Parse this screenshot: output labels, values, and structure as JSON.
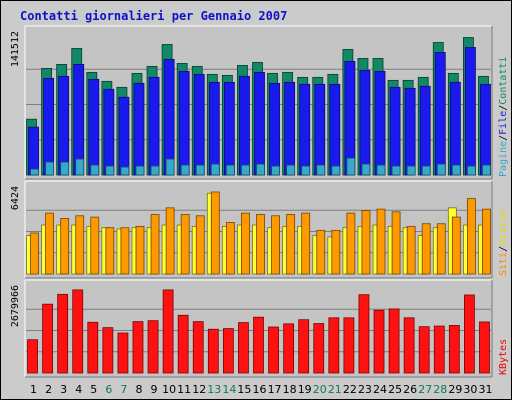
{
  "title": "Contatti giornalieri per Gennaio 2007",
  "chart_data": [
    {
      "type": "bar",
      "panel": "top",
      "categories": [
        "1",
        "2",
        "3",
        "4",
        "5",
        "6",
        "7",
        "8",
        "9",
        "10",
        "11",
        "12",
        "13",
        "14",
        "15",
        "16",
        "17",
        "18",
        "19",
        "20",
        "21",
        "22",
        "23",
        "24",
        "25",
        "26",
        "27",
        "28",
        "29",
        "30",
        "31"
      ],
      "weekend_days": [
        "6",
        "7",
        "13",
        "14",
        "20",
        "21",
        "27",
        "28"
      ],
      "ymax_label": "141512",
      "ylim": [
        0,
        141512
      ],
      "legend": [
        {
          "text": "Pagine",
          "color": "#33aacc"
        },
        {
          "text": "/",
          "color": "#000000"
        },
        {
          "text": "File",
          "color": "#2222dd"
        },
        {
          "text": "/",
          "color": "#000000"
        },
        {
          "text": "Contatti",
          "color": "#118866"
        }
      ],
      "series": [
        {
          "name": "Contatti",
          "color": "#118866",
          "values": [
            56000,
            107000,
            111000,
            127000,
            103000,
            94000,
            88000,
            102000,
            109000,
            131000,
            112000,
            109000,
            101000,
            100000,
            110000,
            113000,
            102000,
            103000,
            98000,
            98000,
            101000,
            126000,
            117000,
            117000,
            95000,
            95000,
            98000,
            133000,
            102000,
            138000,
            99000
          ]
        },
        {
          "name": "File",
          "color": "#1a1aee",
          "values": [
            48000,
            97000,
            99000,
            111000,
            96000,
            86000,
            78000,
            92000,
            98000,
            116000,
            104000,
            101000,
            93000,
            93000,
            99000,
            103000,
            92000,
            93000,
            91000,
            91000,
            91000,
            114000,
            105000,
            104000,
            88000,
            87000,
            89000,
            123000,
            93000,
            128000,
            91000
          ]
        },
        {
          "name": "Pagine",
          "color": "#33aacc",
          "values": [
            6000,
            13000,
            13000,
            16000,
            10000,
            9000,
            8000,
            9000,
            9000,
            16000,
            10000,
            10000,
            11000,
            10000,
            10000,
            11000,
            9000,
            10000,
            9000,
            10000,
            9000,
            17000,
            11000,
            10000,
            9000,
            9000,
            9000,
            11000,
            10000,
            9000,
            10000
          ]
        }
      ]
    },
    {
      "type": "bar",
      "panel": "middle",
      "categories": [
        "1",
        "2",
        "3",
        "4",
        "5",
        "6",
        "7",
        "8",
        "9",
        "10",
        "11",
        "12",
        "13",
        "14",
        "15",
        "16",
        "17",
        "18",
        "19",
        "20",
        "21",
        "22",
        "23",
        "24",
        "25",
        "26",
        "27",
        "28",
        "29",
        "30",
        "31"
      ],
      "ymax_label": "6424",
      "ylim": [
        0,
        6424
      ],
      "legend": [
        {
          "text": "Siti",
          "color": "#ff8800"
        },
        {
          "text": "/",
          "color": "#000000"
        },
        {
          "text": "Visite",
          "color": "#dddd00"
        }
      ],
      "series": [
        {
          "name": "Visite",
          "color": "#ffff33",
          "values": [
            2900,
            3700,
            3700,
            3700,
            3600,
            3500,
            3400,
            3500,
            3500,
            3700,
            3700,
            3600,
            6100,
            3600,
            3700,
            3700,
            3500,
            3600,
            3600,
            2900,
            2800,
            3500,
            3600,
            3700,
            3600,
            3500,
            2900,
            3500,
            5000,
            3700,
            3700
          ]
        },
        {
          "name": "Siti",
          "color": "#ff9900",
          "values": [
            3100,
            4600,
            4200,
            4400,
            4300,
            3500,
            3500,
            3600,
            4500,
            5000,
            4500,
            4400,
            6200,
            3900,
            4600,
            4500,
            4400,
            4500,
            4600,
            3300,
            3300,
            4600,
            4800,
            4900,
            4700,
            3600,
            3800,
            3800,
            4300,
            5700,
            4900
          ]
        }
      ]
    },
    {
      "type": "bar",
      "panel": "bottom",
      "categories": [
        "1",
        "2",
        "3",
        "4",
        "5",
        "6",
        "7",
        "8",
        "9",
        "10",
        "11",
        "12",
        "13",
        "14",
        "15",
        "16",
        "17",
        "18",
        "19",
        "20",
        "21",
        "22",
        "23",
        "24",
        "25",
        "26",
        "27",
        "28",
        "29",
        "30",
        "31"
      ],
      "ymax_label": "2679966",
      "ylim": [
        0,
        2679966
      ],
      "legend": [
        {
          "text": "KBytes",
          "color": "#ee0000"
        }
      ],
      "series": [
        {
          "name": "KBytes",
          "color": "#ff1111",
          "values": [
            1050000,
            2170000,
            2480000,
            2620000,
            1600000,
            1430000,
            1260000,
            1620000,
            1650000,
            2620000,
            1820000,
            1620000,
            1380000,
            1400000,
            1590000,
            1760000,
            1450000,
            1550000,
            1680000,
            1560000,
            1740000,
            1740000,
            2470000,
            1980000,
            2020000,
            1740000,
            1460000,
            1480000,
            1500000,
            2460000,
            1610000
          ]
        }
      ]
    }
  ]
}
